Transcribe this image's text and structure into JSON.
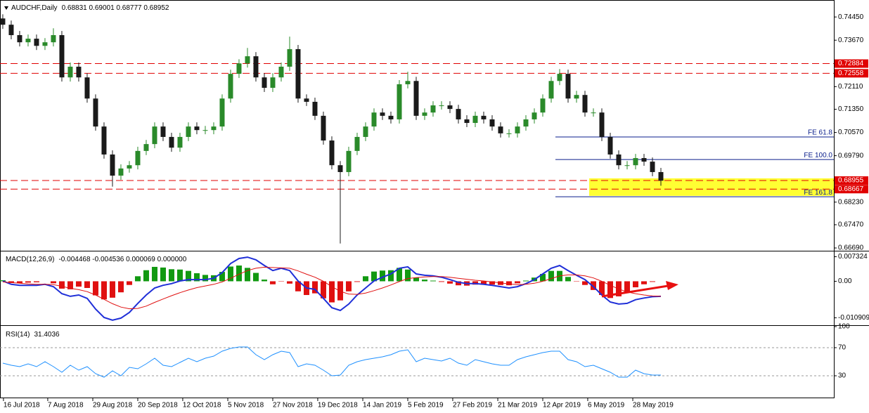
{
  "chart_data": [
    {
      "type": "candlestick",
      "title": "AUDCHF,Daily",
      "header": "0.68831 0.69001 0.68777 0.68952",
      "xlim": [
        -0.33,
        98.5
      ],
      "xticks": [
        {
          "value": 0.08,
          "label": "16 Jul 2018"
        },
        {
          "value": 5.33,
          "label": "7 Aug 2018"
        },
        {
          "value": 10.67,
          "label": "29 Aug 2018"
        },
        {
          "value": 16,
          "label": "20 Sep 2018"
        },
        {
          "value": 21.33,
          "label": "12 Oct 2018"
        },
        {
          "value": 26.67,
          "label": "5 Nov 2018"
        },
        {
          "value": 32,
          "label": "27 Nov 2018"
        },
        {
          "value": 37.33,
          "label": "19 Dec 2018"
        },
        {
          "value": 42.67,
          "label": "14 Jan 2019"
        },
        {
          "value": 48,
          "label": "5 Feb 2019"
        },
        {
          "value": 53.33,
          "label": "27 Feb 2019"
        },
        {
          "value": 58.67,
          "label": "21 Mar 2019"
        },
        {
          "value": 64,
          "label": "12 Apr 2019"
        },
        {
          "value": 69.33,
          "label": "6 May 2019"
        },
        {
          "value": 74.67,
          "label": "28 May 2019"
        }
      ],
      "ylim": [
        0.6662,
        0.7502
      ],
      "yticks": [
        {
          "value": 0.7445,
          "label": "0.74450"
        },
        {
          "value": 0.7367,
          "label": "0.73670"
        },
        {
          "value": 0.7211,
          "label": "0.72110"
        },
        {
          "value": 0.7135,
          "label": "0.71350"
        },
        {
          "value": 0.7057,
          "label": "0.70570"
        },
        {
          "value": 0.6979,
          "label": "0.69790"
        },
        {
          "value": 0.6823,
          "label": "0.68230"
        },
        {
          "value": 0.6747,
          "label": "0.67470"
        },
        {
          "value": 0.6669,
          "label": "0.66690"
        }
      ],
      "up_color": "#2a8a2a",
      "down_color": "#1a1a1a",
      "open": [
        0.744,
        0.7419,
        0.7384,
        0.736,
        0.7372,
        0.7348,
        0.736,
        0.7384,
        0.7242,
        0.7278,
        0.7242,
        0.7171,
        0.7077,
        0.6983,
        0.6912,
        0.6936,
        0.6947,
        0.6995,
        0.7018,
        0.7077,
        0.7042,
        0.7006,
        0.7042,
        0.7077,
        0.7065,
        0.7065,
        0.7077,
        0.7171,
        0.7254,
        0.7289,
        0.7313,
        0.7242,
        0.7207,
        0.7242,
        0.7278,
        0.7337,
        0.7171,
        0.716,
        0.7113,
        0.703,
        0.6947,
        0.6924,
        0.6995,
        0.7042,
        0.7077,
        0.7124,
        0.7113,
        0.7101,
        0.7219,
        0.723,
        0.7113,
        0.7124,
        0.7148,
        0.7148,
        0.7136,
        0.7101,
        0.7089,
        0.7113,
        0.7101,
        0.7077,
        0.7054,
        0.7054,
        0.7077,
        0.7101,
        0.7124,
        0.7171,
        0.723,
        0.7254,
        0.7171,
        0.7183,
        0.7124,
        0.7124,
        0.7042,
        0.6983,
        0.6947,
        0.6947,
        0.6971,
        0.6959,
        0.6924
      ],
      "high": [
        0.7454,
        0.7433,
        0.7398,
        0.7386,
        0.7386,
        0.7374,
        0.7407,
        0.7398,
        0.7292,
        0.7292,
        0.7256,
        0.7185,
        0.7091,
        0.6997,
        0.695,
        0.6961,
        0.7009,
        0.7032,
        0.7091,
        0.7091,
        0.7056,
        0.7056,
        0.7091,
        0.7091,
        0.7079,
        0.7091,
        0.7185,
        0.7268,
        0.7303,
        0.7341,
        0.7327,
        0.7256,
        0.7256,
        0.7292,
        0.7379,
        0.7351,
        0.7185,
        0.7174,
        0.7127,
        0.7044,
        0.6961,
        0.7009,
        0.7056,
        0.7091,
        0.7138,
        0.7138,
        0.7127,
        0.7233,
        0.7261,
        0.7244,
        0.7138,
        0.7162,
        0.7162,
        0.7162,
        0.715,
        0.7115,
        0.7127,
        0.7127,
        0.7115,
        0.7091,
        0.7068,
        0.7091,
        0.7115,
        0.7138,
        0.7185,
        0.7244,
        0.727,
        0.7268,
        0.7197,
        0.7197,
        0.7138,
        0.7138,
        0.7056,
        0.6997,
        0.6961,
        0.6985,
        0.6985,
        0.6973,
        0.6938
      ],
      "low": [
        0.7405,
        0.737,
        0.7346,
        0.7346,
        0.7334,
        0.7334,
        0.7346,
        0.7228,
        0.7228,
        0.7228,
        0.7157,
        0.7063,
        0.6969,
        0.6875,
        0.6898,
        0.6922,
        0.6933,
        0.6981,
        0.7004,
        0.7028,
        0.6992,
        0.6992,
        0.7028,
        0.7051,
        0.7051,
        0.7051,
        0.7063,
        0.7157,
        0.724,
        0.7275,
        0.7228,
        0.7193,
        0.7193,
        0.7228,
        0.7264,
        0.7157,
        0.7146,
        0.7099,
        0.7016,
        0.6933,
        0.6684,
        0.691,
        0.6981,
        0.7028,
        0.7063,
        0.7099,
        0.7087,
        0.7087,
        0.7205,
        0.7099,
        0.7099,
        0.711,
        0.7134,
        0.7122,
        0.7087,
        0.7075,
        0.7075,
        0.7087,
        0.7063,
        0.704,
        0.704,
        0.704,
        0.7063,
        0.7087,
        0.711,
        0.7157,
        0.7216,
        0.7157,
        0.7157,
        0.711,
        0.711,
        0.7028,
        0.6969,
        0.6933,
        0.6933,
        0.6933,
        0.6945,
        0.691,
        0.6878
      ],
      "close": [
        0.7419,
        0.7384,
        0.736,
        0.7372,
        0.7348,
        0.736,
        0.7384,
        0.7242,
        0.7278,
        0.7242,
        0.7171,
        0.7077,
        0.6983,
        0.6912,
        0.6936,
        0.6947,
        0.6995,
        0.7018,
        0.7077,
        0.7042,
        0.7006,
        0.7042,
        0.7077,
        0.7065,
        0.7065,
        0.7077,
        0.7171,
        0.7254,
        0.7289,
        0.7313,
        0.7242,
        0.7207,
        0.7242,
        0.7278,
        0.7337,
        0.7171,
        0.716,
        0.7113,
        0.703,
        0.6947,
        0.6924,
        0.6995,
        0.7042,
        0.7077,
        0.7124,
        0.7113,
        0.7101,
        0.7219,
        0.723,
        0.7113,
        0.7124,
        0.7148,
        0.7148,
        0.7136,
        0.7101,
        0.7089,
        0.7113,
        0.7101,
        0.7077,
        0.7054,
        0.7054,
        0.7077,
        0.7101,
        0.7124,
        0.7171,
        0.723,
        0.7254,
        0.7171,
        0.7183,
        0.7124,
        0.7124,
        0.7042,
        0.6983,
        0.6947,
        0.6947,
        0.6971,
        0.6959,
        0.6924,
        0.6895
      ],
      "levels": [
        0.72884,
        0.72558,
        0.68955,
        0.68667
      ],
      "level_color": "#e00000",
      "zone": {
        "from": 69.5,
        "low": 0.6844,
        "high": 0.6903,
        "color": "#ffff33"
      },
      "fibo": {
        "from": 65.5,
        "color": "#0a1e8c",
        "lines": [
          {
            "label": "FE 61.8",
            "value": 0.7042
          },
          {
            "label": "FE 100.0",
            "value": 0.6966
          },
          {
            "label": "FE 161.8",
            "value": 0.6841
          }
        ]
      }
    },
    {
      "type": "macd",
      "title": "MACD(12,26,9)",
      "header": "-0.004468 -0.004536 0.000069 0.000000",
      "ylim": [
        -0.0129,
        0.0089
      ],
      "yticks": [
        0.007324,
        {
          "value": 0,
          "label": "0.00"
        },
        -0.010909
      ],
      "histogram": {
        "up_color": "#119911",
        "down_color": "#e01010",
        "values": [
          0.0003,
          -0.0005,
          -0.0006,
          -0.0004,
          -0.0003,
          0.0,
          -0.0006,
          -0.0022,
          -0.0024,
          -0.0016,
          -0.002,
          -0.0042,
          -0.0054,
          -0.0049,
          -0.0033,
          -0.0011,
          0.0015,
          0.0033,
          0.0043,
          0.0041,
          0.0036,
          0.0035,
          0.0031,
          0.0024,
          0.0019,
          0.0018,
          0.0028,
          0.0044,
          0.0047,
          0.004,
          0.0025,
          0.0005,
          -0.0009,
          -0.0001,
          -0.0007,
          -0.003,
          -0.0041,
          -0.0036,
          -0.0051,
          -0.0063,
          -0.0057,
          -0.003,
          -0.0002,
          0.0015,
          0.0029,
          0.0032,
          0.0033,
          0.004,
          0.0035,
          0.0011,
          0.0005,
          0.0002,
          -0.0002,
          -0.0007,
          -0.0012,
          -0.0013,
          -0.001,
          -0.001,
          -0.001,
          -0.0011,
          -0.0012,
          -0.0006,
          0.0002,
          0.0011,
          0.0022,
          0.0031,
          0.0031,
          0.0013,
          -0.0001,
          -0.0011,
          -0.0026,
          -0.0041,
          -0.005,
          -0.0045,
          -0.0034,
          -0.0018,
          -0.0009,
          -0.0002,
          0.0
        ]
      },
      "series": [
        {
          "color": "#1f2fd8",
          "values": [
            0.0001,
            -0.0009,
            -0.0012,
            -0.0012,
            -0.0012,
            -0.0009,
            -0.0016,
            -0.0037,
            -0.0045,
            -0.0041,
            -0.0051,
            -0.0083,
            -0.0108,
            -0.0116,
            -0.011,
            -0.0093,
            -0.0066,
            -0.0041,
            -0.002,
            -0.0012,
            -0.0007,
            0.0001,
            0.0005,
            0.0005,
            0.0005,
            0.0009,
            0.0026,
            0.0053,
            0.0068,
            0.0072,
            0.0064,
            0.0047,
            0.0032,
            0.0039,
            0.0032,
            0.0001,
            -0.002,
            -0.0024,
            -0.0051,
            -0.0079,
            -0.0087,
            -0.0068,
            -0.0041,
            -0.002,
            0.0001,
            0.0012,
            0.0022,
            0.0039,
            0.0043,
            0.0022,
            0.0018,
            0.0016,
            0.0012,
            0.0005,
            -0.0003,
            -0.0007,
            -0.0007,
            -0.0009,
            -0.0012,
            -0.0016,
            -0.002,
            -0.0016,
            -0.0007,
            0.0005,
            0.0022,
            0.0039,
            0.0047,
            0.0032,
            0.0018,
            0.0005,
            -0.0016,
            -0.0041,
            -0.0062,
            -0.0068,
            -0.0066,
            -0.0055,
            -0.005,
            -0.0046,
            -0.0045
          ]
        },
        {
          "color": "#e01010",
          "values": [
            -0.0002,
            -0.0004,
            -0.0006,
            -0.0008,
            -0.0009,
            -0.0009,
            -0.001,
            -0.0015,
            -0.0021,
            -0.0025,
            -0.0031,
            -0.0041,
            -0.0054,
            -0.0067,
            -0.0077,
            -0.0082,
            -0.0081,
            -0.0074,
            -0.0063,
            -0.0053,
            -0.0043,
            -0.0034,
            -0.0026,
            -0.0019,
            -0.0014,
            -0.0009,
            -0.0002,
            0.0009,
            0.0021,
            0.0032,
            0.0039,
            0.0042,
            0.0041,
            0.004,
            0.0039,
            0.0031,
            0.0021,
            0.0012,
            0.0,
            -0.0016,
            -0.003,
            -0.0038,
            -0.0039,
            -0.0035,
            -0.0028,
            -0.002,
            -0.0011,
            -0.0001,
            0.0008,
            0.0011,
            0.0013,
            0.0014,
            0.0014,
            0.0012,
            0.0009,
            0.0006,
            0.0003,
            0.0001,
            -0.0002,
            -0.0005,
            -0.0008,
            -0.001,
            -0.0009,
            -0.0006,
            0.0,
            0.0008,
            0.0016,
            0.0019,
            0.0019,
            0.0016,
            0.001,
            0.0,
            -0.0012,
            -0.0023,
            -0.0032,
            -0.0037,
            -0.0041,
            -0.0044,
            -0.0045
          ]
        }
      ]
    },
    {
      "type": "line",
      "title": "RSI(14)",
      "header": "31.4036",
      "ylim": [
        0,
        100
      ],
      "yticks": [
        100,
        70,
        30
      ],
      "levels": [
        70,
        30
      ],
      "color": "#1e90ff",
      "values": [
        48,
        45,
        43,
        47,
        43,
        50,
        43,
        35,
        45,
        38,
        43,
        33,
        28,
        37,
        30,
        42,
        40,
        47,
        55,
        45,
        43,
        49,
        55,
        50,
        55,
        58,
        65,
        69,
        71,
        71,
        60,
        53,
        60,
        65,
        63,
        43,
        47,
        45,
        38,
        30,
        31,
        45,
        50,
        53,
        55,
        57,
        60,
        65,
        67,
        50,
        55,
        53,
        51,
        55,
        48,
        45,
        53,
        50,
        47,
        45,
        45,
        53,
        57,
        60,
        63,
        65,
        65,
        53,
        50,
        43,
        45,
        40,
        35,
        28,
        28,
        38,
        33,
        31,
        31
      ]
    }
  ]
}
